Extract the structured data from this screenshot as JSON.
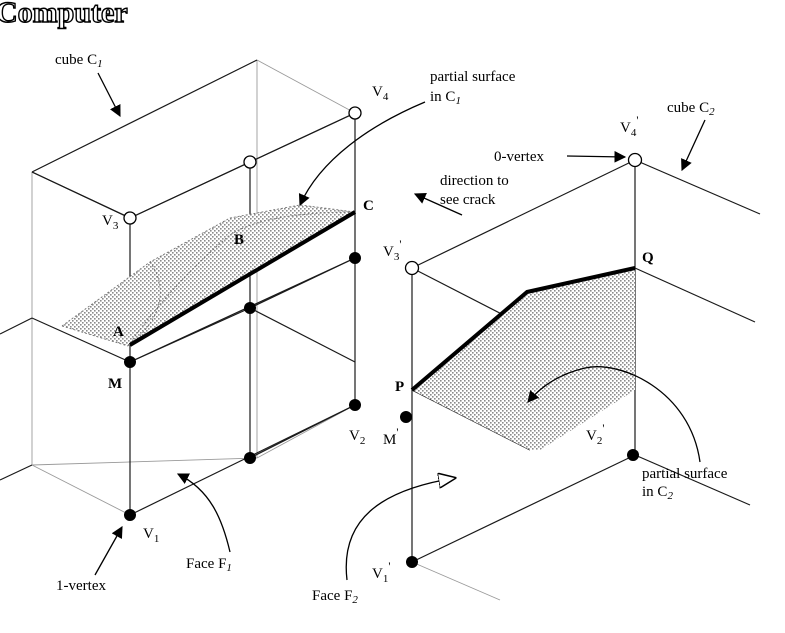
{
  "header": {
    "title": "Computer"
  },
  "labels": {
    "cube_c1": "cube C",
    "cube_c1_sub": "1",
    "partial_surface_c1_line1": "partial surface",
    "partial_surface_c1_line2": "in C",
    "partial_surface_c1_sub": "1",
    "v4": "V",
    "v4_sub": "4",
    "v3": "V",
    "v3_sub": "3",
    "v2": "V",
    "v2_sub": "2",
    "v1": "V",
    "v1_sub": "1",
    "point_a": "A",
    "point_b": "B",
    "point_c": "C",
    "point_m": "M",
    "one_vertex": "1-vertex",
    "face_f1": "Face F",
    "face_f1_sub": "1",
    "cube_c2": "cube C",
    "cube_c2_sub": "2",
    "zero_vertex": "0-vertex",
    "direction_line1": "direction to",
    "direction_line2": "see crack",
    "v4p": "V",
    "v4p_sub": "4",
    "v4p_mark": "'",
    "v3p": "V",
    "v3p_sub": "3",
    "v3p_mark": "'",
    "v2p": "V",
    "v2p_sub": "2",
    "v2p_mark": "'",
    "v1p": "V",
    "v1p_sub": "1",
    "v1p_mark": "'",
    "point_q": "Q",
    "point_p": "P",
    "point_mp": "M",
    "point_mp_mark": "'",
    "partial_surface_c2_line1": "partial surface",
    "partial_surface_c2_line2": "in C",
    "partial_surface_c2_sub": "2",
    "face_f2": "Face F",
    "face_f2_sub": "2"
  },
  "colors": {
    "ink": "#000000",
    "surface": "#bdbdbd",
    "grid": "#9a9a9a"
  }
}
